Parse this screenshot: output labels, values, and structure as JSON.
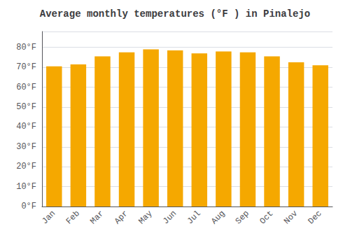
{
  "chart_data": {
    "type": "bar",
    "title": "Average monthly temperatures (°F ) in Pinalejo",
    "categories": [
      "Jan",
      "Feb",
      "Mar",
      "Apr",
      "May",
      "Jun",
      "Jul",
      "Aug",
      "Sep",
      "Oct",
      "Nov",
      "Dec"
    ],
    "values": [
      70.5,
      71.5,
      75.5,
      77.5,
      79.0,
      78.5,
      77.0,
      78.0,
      77.5,
      75.5,
      72.5,
      71.0
    ],
    "color": "#F5A800",
    "ylim": [
      0,
      88
    ],
    "yticks": [
      {
        "value": 0,
        "label": "0°F"
      },
      {
        "value": 10,
        "label": "10°F"
      },
      {
        "value": 20,
        "label": "20°F"
      },
      {
        "value": 30,
        "label": "30°F"
      },
      {
        "value": 40,
        "label": "40°F"
      },
      {
        "value": 50,
        "label": "50°F"
      },
      {
        "value": 60,
        "label": "60°F"
      },
      {
        "value": 70,
        "label": "70°F"
      },
      {
        "value": 80,
        "label": "80°F"
      }
    ],
    "grid": true
  }
}
